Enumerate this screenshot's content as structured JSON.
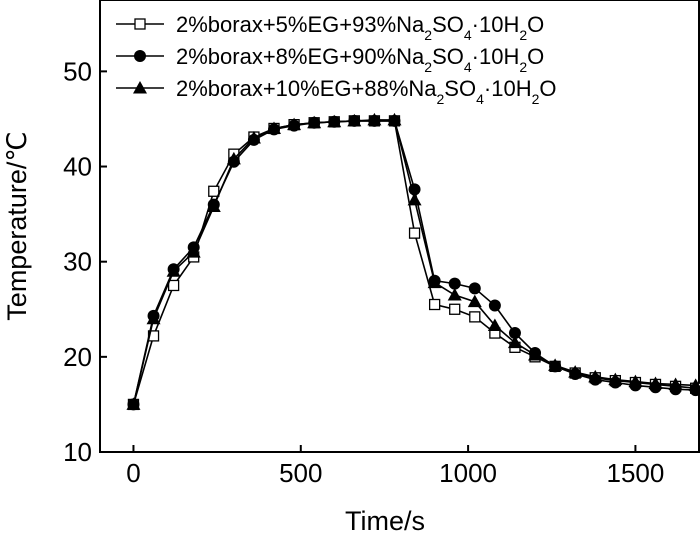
{
  "chart_data": {
    "type": "line",
    "xlabel": "Time/s",
    "ylabel": "Temperature/℃",
    "xlim": [
      -100,
      1690
    ],
    "ylim": [
      10,
      57.5
    ],
    "xticks": [
      0,
      500,
      1000,
      1500
    ],
    "yticks": [
      10,
      20,
      30,
      40,
      50
    ],
    "grid": false,
    "legend_position": "top",
    "series": [
      {
        "name": "2%borax+5%EG+93%Na2SO4·10H2O",
        "legend": {
          "pre": "2%borax+5%EG+93%Na",
          "sub1": "2",
          "mid": "SO",
          "sub2": "4",
          "post": "·10H",
          "sub3": "2",
          "end": "O"
        },
        "marker": "open-square",
        "x": [
          0,
          60,
          120,
          180,
          240,
          300,
          360,
          420,
          480,
          540,
          600,
          660,
          720,
          780,
          840,
          900,
          960,
          1020,
          1080,
          1140,
          1200,
          1260,
          1320,
          1380,
          1440,
          1500,
          1560,
          1620,
          1680
        ],
        "y": [
          15.0,
          22.2,
          27.5,
          30.5,
          37.4,
          41.3,
          43.1,
          44.0,
          44.4,
          44.6,
          44.7,
          44.8,
          44.8,
          44.8,
          33.0,
          25.5,
          25.0,
          24.2,
          22.5,
          21.0,
          20.0,
          19.0,
          18.3,
          17.8,
          17.5,
          17.3,
          17.1,
          16.9,
          16.7
        ]
      },
      {
        "name": "2%borax+8%EG+90%Na2SO4·10H2O",
        "legend": {
          "pre": "2%borax+8%EG+90%Na",
          "sub1": "2",
          "mid": "SO",
          "sub2": "4",
          "post": "·10H",
          "sub3": "2",
          "end": "O"
        },
        "marker": "filled-circle",
        "x": [
          0,
          60,
          120,
          180,
          240,
          300,
          360,
          420,
          480,
          540,
          600,
          660,
          720,
          780,
          840,
          900,
          960,
          1020,
          1080,
          1140,
          1200,
          1260,
          1320,
          1380,
          1440,
          1500,
          1560,
          1620,
          1680
        ],
        "y": [
          15.0,
          24.3,
          29.2,
          31.5,
          36.0,
          40.5,
          42.8,
          43.9,
          44.3,
          44.6,
          44.7,
          44.8,
          44.8,
          44.8,
          37.6,
          28.0,
          27.7,
          27.2,
          25.4,
          22.5,
          20.4,
          19.0,
          18.2,
          17.6,
          17.3,
          17.0,
          16.8,
          16.6,
          16.5
        ]
      },
      {
        "name": "2%borax+10%EG+88%Na2SO4·10H2O",
        "legend": {
          "pre": "2%borax+10%EG+88%Na",
          "sub1": "2",
          "mid": "SO",
          "sub2": "4",
          "post": "·10H",
          "sub3": "2",
          "end": "O"
        },
        "marker": "filled-triangle",
        "x": [
          0,
          60,
          120,
          180,
          240,
          300,
          360,
          420,
          480,
          540,
          600,
          660,
          720,
          780,
          840,
          900,
          960,
          1020,
          1080,
          1140,
          1200,
          1260,
          1320,
          1380,
          1440,
          1500,
          1560,
          1620,
          1680
        ],
        "y": [
          15.0,
          24.0,
          29.0,
          31.0,
          35.8,
          40.8,
          43.0,
          44.0,
          44.4,
          44.6,
          44.7,
          44.8,
          44.9,
          44.9,
          36.5,
          27.8,
          26.5,
          25.8,
          23.3,
          21.5,
          20.2,
          19.1,
          18.4,
          17.9,
          17.6,
          17.4,
          17.2,
          17.1,
          17.0
        ]
      }
    ]
  }
}
